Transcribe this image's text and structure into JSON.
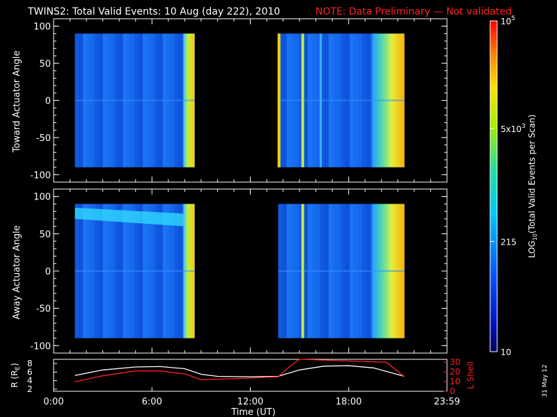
{
  "header": {
    "title": "TWINS2: Total Valid Events: 10 Aug (day 222), 2010",
    "note": "NOTE: Data Preliminary — Not validated"
  },
  "side_stamp": "31 May 12",
  "colors": {
    "note": "#ff2020",
    "lshell": "#ff2020",
    "radius": "#ffffff",
    "background": "#000000"
  },
  "chart_data": [
    {
      "type": "heatmap",
      "ylabel": "Toward Actuator Angle",
      "ylim": [
        -110,
        110
      ],
      "yticks": [
        -100,
        -50,
        0,
        50,
        100
      ],
      "xlim_hours": [
        0,
        24
      ],
      "data_blocks_hours": [
        [
          1.3,
          8.6
        ],
        [
          13.7,
          21.4
        ]
      ],
      "bright_stripes_hours": [
        13.75,
        15.2
      ],
      "notes": "low counts (blue) in most of both blocks; rising to yellow-orange at block ends"
    },
    {
      "type": "heatmap",
      "ylabel": "Away Actuator Angle",
      "ylim": [
        -110,
        110
      ],
      "yticks": [
        -100,
        -50,
        0,
        50,
        100
      ],
      "xlim_hours": [
        0,
        24
      ],
      "data_blocks_hours": [
        [
          1.3,
          8.6
        ],
        [
          13.7,
          21.4
        ]
      ],
      "bright_band_deg": [
        65,
        85
      ],
      "bright_stripes_hours": [
        15.2
      ],
      "notes": "cyan band near +70 deg in first block"
    },
    {
      "type": "line",
      "xlabel": "Time (UT)",
      "xticks": [
        "0:00",
        "6:00",
        "12:00",
        "18:00",
        "23:59"
      ],
      "ylabel_left": "R (R",
      "ylabel_left_sub": "E",
      "ylabel_left_close": ")",
      "yticks_left": [
        2,
        4,
        6,
        8
      ],
      "ylim_left": [
        1.5,
        9
      ],
      "ylabel_right": "L Shell",
      "yticks_right": [
        0,
        10,
        20,
        30
      ],
      "ylim_right": [
        0,
        33
      ],
      "series": [
        {
          "axis": "left",
          "x": [
            1.3,
            3,
            5,
            6.5,
            8,
            9,
            10,
            12,
            13.7,
            15,
            16.5,
            18,
            19.5,
            21.4
          ],
          "values": [
            5.2,
            6.5,
            7.2,
            7.3,
            6.8,
            5.5,
            5.0,
            4.9,
            5.0,
            6.5,
            7.4,
            7.5,
            7.0,
            5.0
          ]
        },
        {
          "axis": "right",
          "x": [
            1.3,
            3,
            5,
            6.5,
            8,
            9,
            11,
            13.7,
            14.3,
            15,
            20.3,
            21.4
          ],
          "values": [
            10,
            16,
            21,
            21,
            18,
            12,
            13,
            15,
            24,
            33,
            30,
            15
          ]
        }
      ]
    }
  ],
  "colorbar": {
    "label": "LOG",
    "label_sub": "10",
    "label_rest": "(Total Valid Events per Scan)",
    "ticks": [
      {
        "value": 10,
        "label": "10"
      },
      {
        "value": 215,
        "label": "215"
      },
      {
        "value": 5000,
        "label": "5x10",
        "sup": "3"
      },
      {
        "value": 100000,
        "label": "10",
        "sup": "5"
      }
    ],
    "range": [
      10,
      100000
    ]
  }
}
